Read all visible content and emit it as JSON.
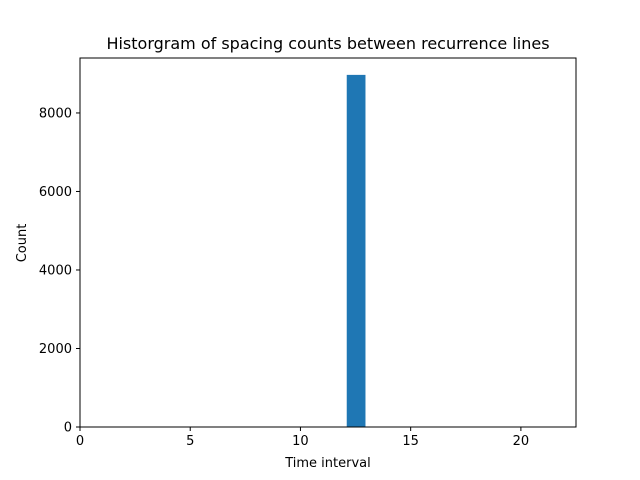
{
  "chart_data": {
    "type": "bar",
    "title": "Historgram of spacing counts between recurrence lines",
    "xlabel": "Time interval",
    "ylabel": "Count",
    "xlim": [
      0,
      22.5
    ],
    "ylim": [
      0,
      9400
    ],
    "xticks": [
      0,
      5,
      10,
      15,
      20
    ],
    "yticks": [
      0,
      2000,
      4000,
      6000,
      8000
    ],
    "bins": [
      {
        "x0": 12.1,
        "x1": 12.95,
        "value": 8970
      }
    ],
    "bar_color": "#1f77b4",
    "grid": false,
    "legend": "none"
  }
}
